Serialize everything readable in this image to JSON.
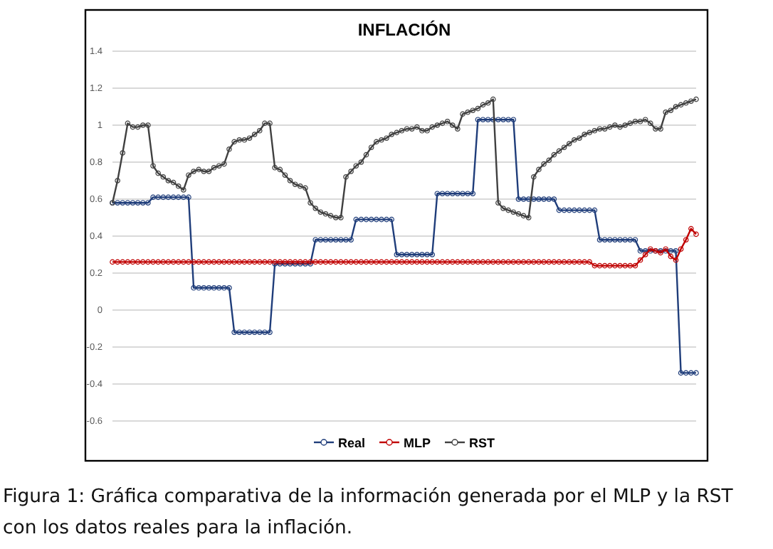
{
  "chart_data": {
    "type": "line",
    "title": "INFLACIÓN",
    "categories": [
      null,
      null,
      null,
      null,
      null,
      null,
      null,
      null,
      null,
      null,
      null,
      null,
      null,
      null,
      null,
      null,
      null,
      null,
      null,
      null,
      null,
      null,
      null,
      null,
      null,
      null,
      null,
      null,
      null,
      null,
      null,
      null,
      null,
      null,
      null,
      null,
      null,
      null,
      null,
      null,
      null,
      null,
      null,
      null,
      null,
      null,
      null,
      null,
      null,
      null,
      null,
      null,
      null,
      null,
      null,
      null,
      null,
      null,
      null,
      null,
      null,
      null,
      null,
      null,
      null,
      null,
      null,
      null,
      null,
      null,
      null,
      null,
      null,
      null,
      null,
      null,
      null,
      null,
      null,
      null,
      null,
      null,
      null,
      null,
      null,
      null,
      null,
      null,
      null,
      null,
      null,
      null,
      null,
      null,
      null,
      null,
      null,
      null,
      null,
      null,
      null,
      null,
      null,
      null,
      null,
      null,
      null,
      null,
      null,
      null,
      null,
      null,
      null,
      null,
      null,
      null
    ],
    "series": [
      {
        "name": "Real",
        "color": "#1f3d7a",
        "values": [
          0.58,
          0.58,
          0.58,
          0.58,
          0.58,
          0.58,
          0.58,
          0.58,
          0.61,
          0.61,
          0.61,
          0.61,
          0.61,
          0.61,
          0.61,
          0.61,
          0.12,
          0.12,
          0.12,
          0.12,
          0.12,
          0.12,
          0.12,
          0.12,
          -0.12,
          -0.12,
          -0.12,
          -0.12,
          -0.12,
          -0.12,
          -0.12,
          -0.12,
          0.25,
          0.25,
          0.25,
          0.25,
          0.25,
          0.25,
          0.25,
          0.25,
          0.38,
          0.38,
          0.38,
          0.38,
          0.38,
          0.38,
          0.38,
          0.38,
          0.49,
          0.49,
          0.49,
          0.49,
          0.49,
          0.49,
          0.49,
          0.49,
          0.3,
          0.3,
          0.3,
          0.3,
          0.3,
          0.3,
          0.3,
          0.3,
          0.63,
          0.63,
          0.63,
          0.63,
          0.63,
          0.63,
          0.63,
          0.63,
          1.03,
          1.03,
          1.03,
          1.03,
          1.03,
          1.03,
          1.03,
          1.03,
          0.6,
          0.6,
          0.6,
          0.6,
          0.6,
          0.6,
          0.6,
          0.6,
          0.54,
          0.54,
          0.54,
          0.54,
          0.54,
          0.54,
          0.54,
          0.54,
          0.38,
          0.38,
          0.38,
          0.38,
          0.38,
          0.38,
          0.38,
          0.38,
          0.32,
          0.32,
          0.32,
          0.32,
          0.32,
          0.32,
          0.32,
          0.32,
          -0.34,
          -0.34,
          -0.34,
          -0.34
        ]
      },
      {
        "name": "MLP",
        "color": "#c00000",
        "values": [
          0.26,
          0.26,
          0.26,
          0.26,
          0.26,
          0.26,
          0.26,
          0.26,
          0.26,
          0.26,
          0.26,
          0.26,
          0.26,
          0.26,
          0.26,
          0.26,
          0.26,
          0.26,
          0.26,
          0.26,
          0.26,
          0.26,
          0.26,
          0.26,
          0.26,
          0.26,
          0.26,
          0.26,
          0.26,
          0.26,
          0.26,
          0.26,
          0.26,
          0.26,
          0.26,
          0.26,
          0.26,
          0.26,
          0.26,
          0.26,
          0.26,
          0.26,
          0.26,
          0.26,
          0.26,
          0.26,
          0.26,
          0.26,
          0.26,
          0.26,
          0.26,
          0.26,
          0.26,
          0.26,
          0.26,
          0.26,
          0.26,
          0.26,
          0.26,
          0.26,
          0.26,
          0.26,
          0.26,
          0.26,
          0.26,
          0.26,
          0.26,
          0.26,
          0.26,
          0.26,
          0.26,
          0.26,
          0.26,
          0.26,
          0.26,
          0.26,
          0.26,
          0.26,
          0.26,
          0.26,
          0.26,
          0.26,
          0.26,
          0.26,
          0.26,
          0.26,
          0.26,
          0.26,
          0.26,
          0.26,
          0.26,
          0.26,
          0.26,
          0.26,
          0.26,
          0.24,
          0.24,
          0.24,
          0.24,
          0.24,
          0.24,
          0.24,
          0.24,
          0.24,
          0.27,
          0.3,
          0.33,
          0.32,
          0.31,
          0.33,
          0.29,
          0.27,
          0.33,
          0.38,
          0.44,
          0.41
        ]
      },
      {
        "name": "RST",
        "color": "#404040",
        "values": [
          0.58,
          0.7,
          0.85,
          1.01,
          0.99,
          0.99,
          1.0,
          1.0,
          0.78,
          0.74,
          0.72,
          0.7,
          0.69,
          0.67,
          0.65,
          0.73,
          0.75,
          0.76,
          0.75,
          0.75,
          0.77,
          0.78,
          0.79,
          0.87,
          0.91,
          0.92,
          0.92,
          0.93,
          0.95,
          0.97,
          1.01,
          1.01,
          0.77,
          0.76,
          0.73,
          0.7,
          0.68,
          0.67,
          0.66,
          0.58,
          0.55,
          0.53,
          0.52,
          0.51,
          0.5,
          0.5,
          0.72,
          0.75,
          0.78,
          0.8,
          0.84,
          0.88,
          0.91,
          0.92,
          0.93,
          0.95,
          0.96,
          0.97,
          0.98,
          0.98,
          0.99,
          0.97,
          0.97,
          0.99,
          1.0,
          1.01,
          1.02,
          1.0,
          0.98,
          1.06,
          1.07,
          1.08,
          1.09,
          1.11,
          1.12,
          1.14,
          0.58,
          0.55,
          0.54,
          0.53,
          0.52,
          0.51,
          0.5,
          0.72,
          0.76,
          0.79,
          0.81,
          0.84,
          0.86,
          0.88,
          0.9,
          0.92,
          0.93,
          0.95,
          0.96,
          0.97,
          0.98,
          0.98,
          0.99,
          1.0,
          0.99,
          1.0,
          1.01,
          1.02,
          1.02,
          1.03,
          1.01,
          0.98,
          0.98,
          1.07,
          1.08,
          1.1,
          1.11,
          1.12,
          1.13,
          1.14
        ]
      }
    ],
    "ylim": [
      -0.6,
      1.4
    ],
    "yticks": [
      -0.6,
      -0.4,
      -0.2,
      0,
      0.2,
      0.4,
      0.6,
      0.8,
      1,
      1.2,
      1.4
    ],
    "grid": "y",
    "legend": "bottom",
    "marker": "circle",
    "line_style": "solid",
    "tick_labels": "y",
    "annotations": [
      "Figura 1: Gráfica comparativa de la información generada por el MLP y la RST con los datos reales para la inflación."
    ]
  }
}
